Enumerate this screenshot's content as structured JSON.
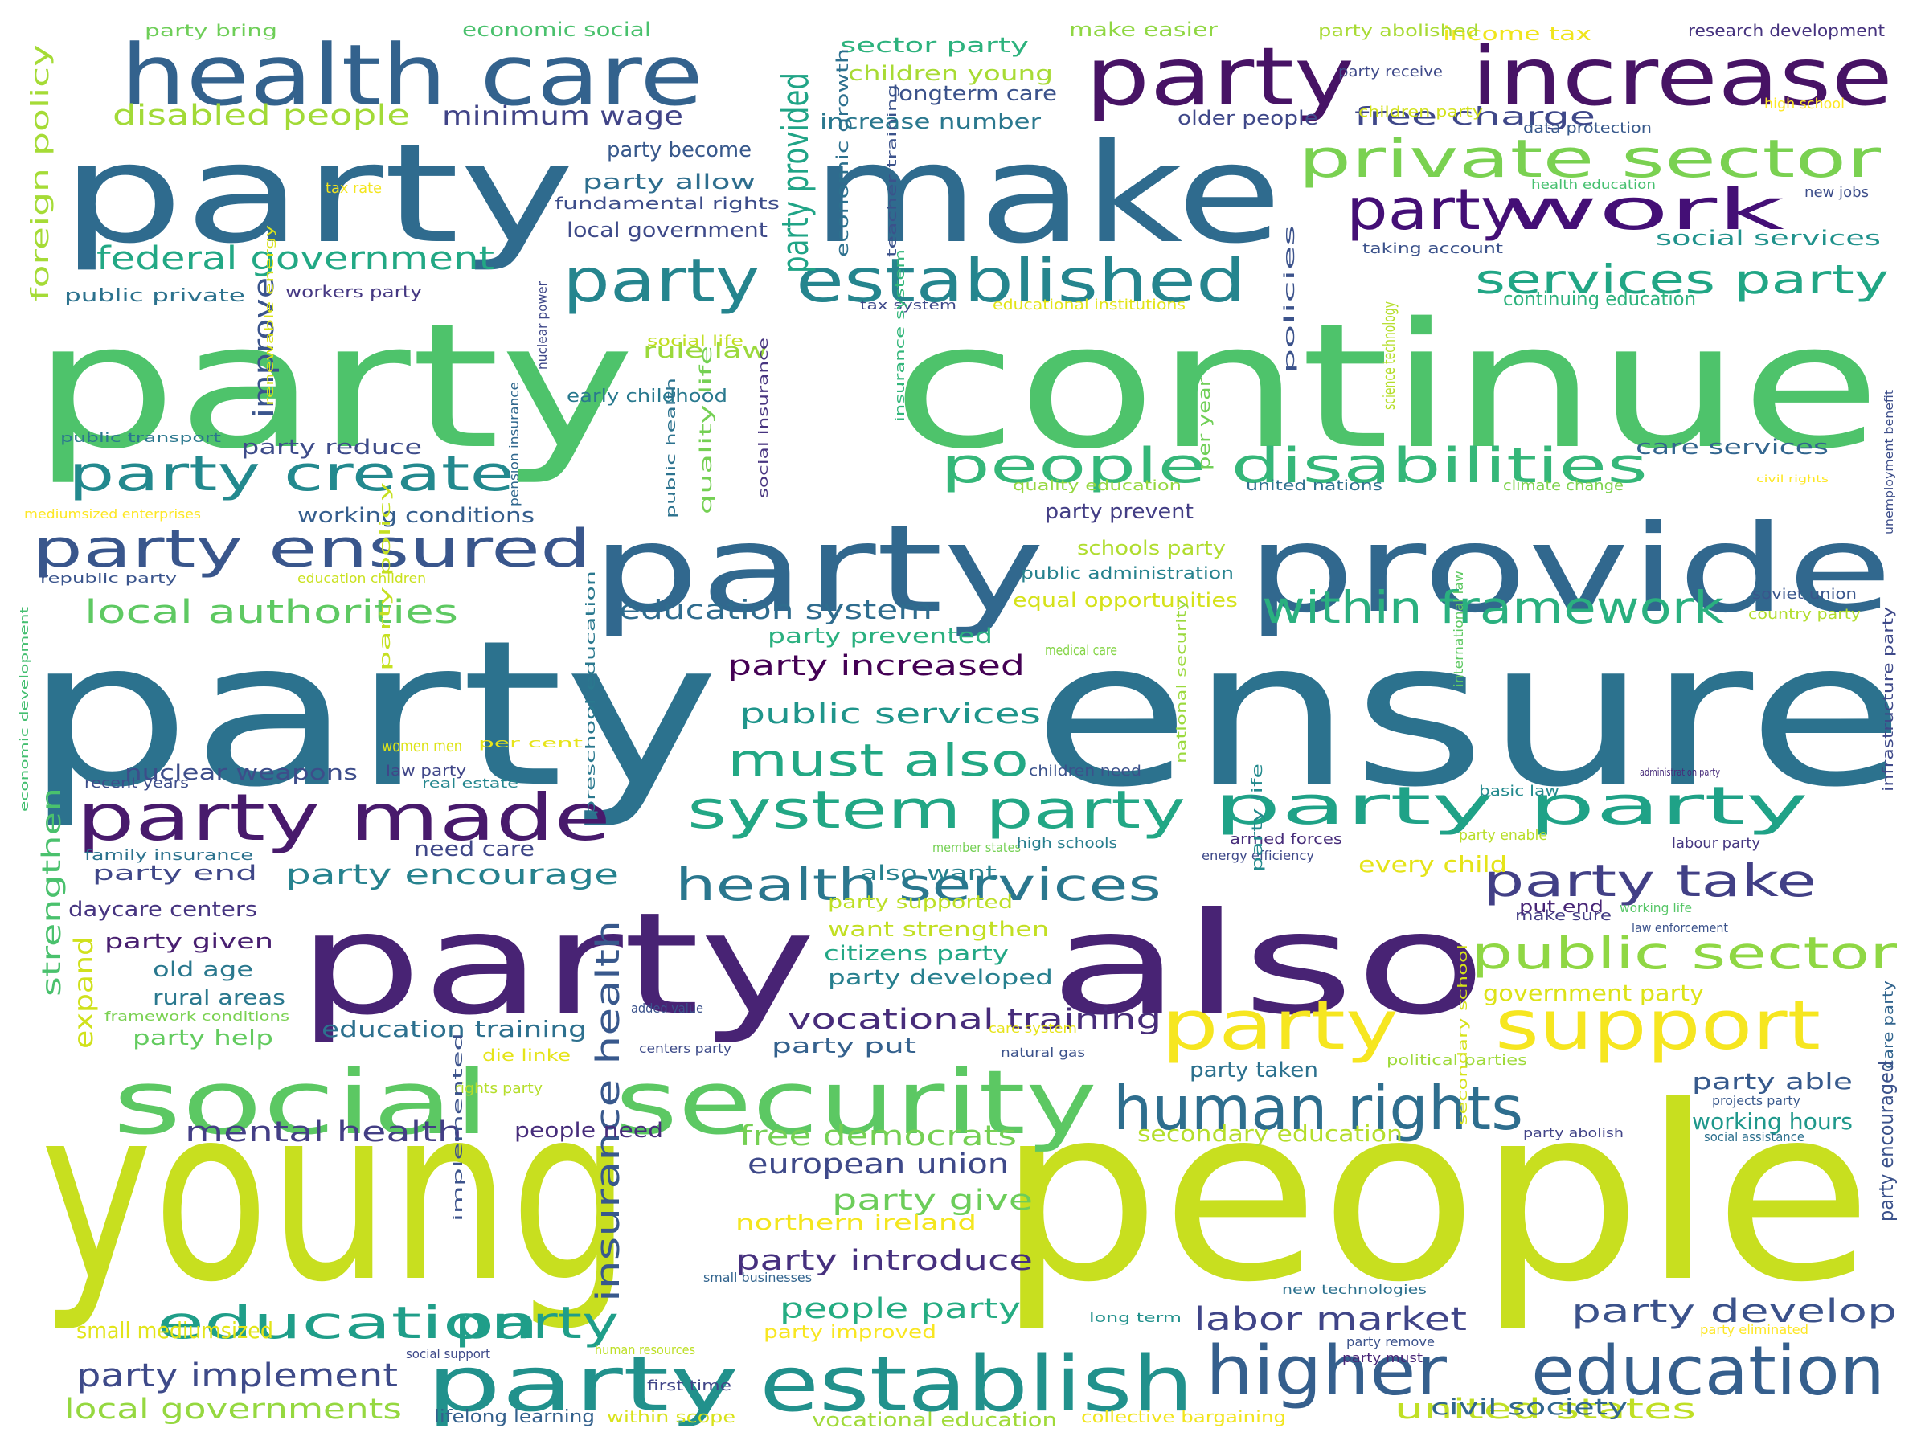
{
  "words": [
    {
      "text": "young people",
      "color": "#c8df1f"
    },
    {
      "text": "party ensure",
      "color": "#2c728e"
    },
    {
      "text": "party continue",
      "color": "#4ec36b"
    },
    {
      "text": "party make",
      "color": "#2f6b8e"
    },
    {
      "text": "party also",
      "color": "#482374"
    },
    {
      "text": "party provide",
      "color": "#31688e"
    },
    {
      "text": "health care",
      "color": "#33628d"
    },
    {
      "text": "party increase",
      "color": "#471365"
    },
    {
      "text": "social security",
      "color": "#5cc863"
    },
    {
      "text": "party established",
      "color": "#25858e"
    },
    {
      "text": "higher education",
      "color": "#355f8d"
    },
    {
      "text": "party establish",
      "color": "#21918c"
    },
    {
      "text": "party support",
      "color": "#f6e620"
    },
    {
      "text": "human rights",
      "color": "#2e6e8e"
    },
    {
      "text": "private sector",
      "color": "#7ad151"
    },
    {
      "text": "party work",
      "color": "#440f76"
    },
    {
      "text": "party made",
      "color": "#481a6c"
    },
    {
      "text": "system party",
      "color": "#22a785"
    },
    {
      "text": "people disabilities",
      "color": "#35b779"
    },
    {
      "text": "party create",
      "color": "#23898e"
    },
    {
      "text": "party ensured",
      "color": "#39568c"
    },
    {
      "text": "education party",
      "color": "#1f9e89"
    },
    {
      "text": "within framework",
      "color": "#2ab07f"
    },
    {
      "text": "services party",
      "color": "#21a685"
    },
    {
      "text": "health services",
      "color": "#2a778e"
    },
    {
      "text": "public sector",
      "color": "#8fd744"
    },
    {
      "text": "party take",
      "color": "#424086"
    },
    {
      "text": "must also",
      "color": "#22a884"
    },
    {
      "text": "party provided",
      "color": "#20a486"
    },
    {
      "text": "party party",
      "color": "#1fa287"
    },
    {
      "text": "labor market",
      "color": "#404588"
    },
    {
      "text": "party develop",
      "color": "#3b528b"
    },
    {
      "text": "party implement",
      "color": "#3e4a89"
    },
    {
      "text": "federal government",
      "color": "#22a884"
    },
    {
      "text": "vocational training",
      "color": "#472c7a"
    },
    {
      "text": "insurance health",
      "color": "#38588c"
    },
    {
      "text": "local authorities",
      "color": "#5ec962"
    },
    {
      "text": "local governments",
      "color": "#95d840"
    },
    {
      "text": "united states",
      "color": "#c0df25"
    },
    {
      "text": "mental health",
      "color": "#433e85"
    },
    {
      "text": "free democrats",
      "color": "#75d054"
    },
    {
      "text": "european union",
      "color": "#3e4989"
    },
    {
      "text": "people party",
      "color": "#25ac82"
    },
    {
      "text": "party introduce",
      "color": "#46307e"
    },
    {
      "text": "party increased",
      "color": "#440154"
    },
    {
      "text": "public services",
      "color": "#1f958b"
    },
    {
      "text": "education system",
      "color": "#2f6c8e"
    },
    {
      "text": "party give",
      "color": "#6ccd5a"
    },
    {
      "text": "disabled people",
      "color": "#a2da37"
    },
    {
      "text": "minimum wage",
      "color": "#414487"
    },
    {
      "text": "free charge",
      "color": "#3f4889"
    },
    {
      "text": "improve",
      "color": "#3a548c"
    },
    {
      "text": "strengthen",
      "color": "#4ac16d"
    },
    {
      "text": "expand",
      "color": "#d0e11c"
    },
    {
      "text": "party encourage",
      "color": "#26828e"
    },
    {
      "text": "foreign policy",
      "color": "#a5db36"
    },
    {
      "text": "education training",
      "color": "#2d708e"
    },
    {
      "text": "civil society",
      "color": "#31668e"
    },
    {
      "text": "secondary education",
      "color": "#b5de2b"
    },
    {
      "text": "party able",
      "color": "#375a8c"
    },
    {
      "text": "working hours",
      "color": "#1f988b"
    },
    {
      "text": "every child",
      "color": "#e5e419"
    },
    {
      "text": "government party",
      "color": "#dde318"
    },
    {
      "text": "small mediumsized",
      "color": "#e2e418"
    },
    {
      "text": "vocational education",
      "color": "#a0da39"
    },
    {
      "text": "lifelong learning",
      "color": "#34618d"
    },
    {
      "text": "within scope",
      "color": "#d8e219"
    },
    {
      "text": "collective bargaining",
      "color": "#f1e51d"
    },
    {
      "text": "party improved",
      "color": "#f8e621"
    },
    {
      "text": "northern ireland",
      "color": "#f4e61e"
    },
    {
      "text": "want strengthen",
      "color": "#c2df23"
    },
    {
      "text": "citizens party",
      "color": "#22a785"
    },
    {
      "text": "party developed",
      "color": "#277f8e"
    },
    {
      "text": "party supported",
      "color": "#bddf26"
    },
    {
      "text": "party put",
      "color": "#34618d"
    },
    {
      "text": "party taken",
      "color": "#2c718e"
    },
    {
      "text": "people need",
      "color": "#472d7b"
    },
    {
      "text": "nuclear weapons",
      "color": "#3d4d8a"
    },
    {
      "text": "party end",
      "color": "#3f4788"
    },
    {
      "text": "daycare centers",
      "color": "#463480"
    },
    {
      "text": "party given",
      "color": "#481f70"
    },
    {
      "text": "old age",
      "color": "#2a788e"
    },
    {
      "text": "rural areas",
      "color": "#2a788e"
    },
    {
      "text": "party help",
      "color": "#63cb5f"
    },
    {
      "text": "need care",
      "color": "#3f4788"
    },
    {
      "text": "also want",
      "color": "#26818e"
    },
    {
      "text": "party prevented",
      "color": "#2ab07f"
    },
    {
      "text": "equal opportunities",
      "color": "#d5e21a"
    },
    {
      "text": "party prevent",
      "color": "#433e85"
    },
    {
      "text": "schools party",
      "color": "#b0dd2f"
    },
    {
      "text": "working conditions",
      "color": "#355e8d"
    },
    {
      "text": "party reduce",
      "color": "#3e4c8a"
    },
    {
      "text": "rule law",
      "color": "#9bd93c"
    },
    {
      "text": "early childhood",
      "color": "#29798e"
    },
    {
      "text": "care services",
      "color": "#32658e"
    },
    {
      "text": "continuing education",
      "color": "#2db27d"
    },
    {
      "text": "social services",
      "color": "#20928c"
    },
    {
      "text": "party allow",
      "color": "#2e6e8e"
    },
    {
      "text": "party become",
      "color": "#38598c"
    },
    {
      "text": "local government",
      "color": "#3e4a89"
    },
    {
      "text": "fundamental rights",
      "color": "#3d4d8a"
    },
    {
      "text": "sector party",
      "color": "#2db27d"
    },
    {
      "text": "children young",
      "color": "#a8db34"
    },
    {
      "text": "longterm care",
      "color": "#3b528b"
    },
    {
      "text": "increase number",
      "color": "#2a788e"
    },
    {
      "text": "older people",
      "color": "#3f4889"
    },
    {
      "text": "make easier",
      "color": "#90d743"
    },
    {
      "text": "income tax",
      "color": "#f0e51c"
    },
    {
      "text": "economic social",
      "color": "#4ac16d"
    },
    {
      "text": "party bring",
      "color": "#6ece58"
    },
    {
      "text": "party abolished",
      "color": "#a8db34"
    },
    {
      "text": "research development",
      "color": "#46337f"
    },
    {
      "text": "data protection",
      "color": "#38598c"
    },
    {
      "text": "party receive",
      "color": "#3e4989"
    },
    {
      "text": "children party",
      "color": "#d2e21b"
    },
    {
      "text": "high school",
      "color": "#fde725"
    },
    {
      "text": "health education",
      "color": "#46c06f"
    },
    {
      "text": "new jobs",
      "color": "#3d4e8a"
    },
    {
      "text": "taking account",
      "color": "#3b528b"
    },
    {
      "text": "public private",
      "color": "#2c728e"
    },
    {
      "text": "workers party",
      "color": "#453882"
    },
    {
      "text": "tax rate",
      "color": "#f3e51e"
    },
    {
      "text": "tax system",
      "color": "#3e4989"
    },
    {
      "text": "educational institutions",
      "color": "#e2e418"
    },
    {
      "text": "social life",
      "color": "#c2df23"
    },
    {
      "text": "public transport",
      "color": "#2a778e"
    },
    {
      "text": "mediumsized enterprises",
      "color": "#fde725"
    },
    {
      "text": "republic party",
      "color": "#3a548c"
    },
    {
      "text": "education children",
      "color": "#cae11f"
    },
    {
      "text": "united nations",
      "color": "#2d708e"
    },
    {
      "text": "climate change",
      "color": "#7fd34e"
    },
    {
      "text": "quality education",
      "color": "#95d840"
    },
    {
      "text": "public administration",
      "color": "#26828e"
    },
    {
      "text": "soviet union",
      "color": "#39568c"
    },
    {
      "text": "country party",
      "color": "#b2dd2d"
    },
    {
      "text": "medical care",
      "color": "#86d549"
    },
    {
      "text": "per cent",
      "color": "#e7e419"
    },
    {
      "text": "women men",
      "color": "#dde318"
    },
    {
      "text": "law party",
      "color": "#404688"
    },
    {
      "text": "real estate",
      "color": "#24868e"
    },
    {
      "text": "children need",
      "color": "#3b528b"
    },
    {
      "text": "basic law",
      "color": "#238a8d"
    },
    {
      "text": "armed forces",
      "color": "#472c7a"
    },
    {
      "text": "party enable",
      "color": "#b8de29"
    },
    {
      "text": "labour party",
      "color": "#453781"
    },
    {
      "text": "member states",
      "color": "#75d054"
    },
    {
      "text": "high schools",
      "color": "#277e8e"
    },
    {
      "text": "energy efficiency",
      "color": "#3e4989"
    },
    {
      "text": "make sure",
      "color": "#433d84"
    },
    {
      "text": "working life",
      "color": "#56c667"
    },
    {
      "text": "law enforcement",
      "color": "#3b528b"
    },
    {
      "text": "put end",
      "color": "#482576"
    },
    {
      "text": "recent years",
      "color": "#3d4d8a"
    },
    {
      "text": "family insurance",
      "color": "#2c728e"
    },
    {
      "text": "framework conditions",
      "color": "#7ad151"
    },
    {
      "text": "added value",
      "color": "#3b528b"
    },
    {
      "text": "centers party",
      "color": "#3e4c8a"
    },
    {
      "text": "care system",
      "color": "#e7e419"
    },
    {
      "text": "natural gas",
      "color": "#3b528b"
    },
    {
      "text": "political parties",
      "color": "#9fda3a"
    },
    {
      "text": "projects party",
      "color": "#38588c"
    },
    {
      "text": "party abolish",
      "color": "#404387"
    },
    {
      "text": "social assistance",
      "color": "#2d708e"
    },
    {
      "text": "die linke",
      "color": "#e5e419"
    },
    {
      "text": "rights party",
      "color": "#b5de2b"
    },
    {
      "text": "small businesses",
      "color": "#32648e"
    },
    {
      "text": "new technologies",
      "color": "#2c718e"
    },
    {
      "text": "long term",
      "color": "#21918c"
    },
    {
      "text": "party remove",
      "color": "#3b528b"
    },
    {
      "text": "party must",
      "color": "#482576"
    },
    {
      "text": "party eliminated",
      "color": "#fde725"
    },
    {
      "text": "social support",
      "color": "#3e4a89"
    },
    {
      "text": "human resources",
      "color": "#bddf26"
    },
    {
      "text": "first time",
      "color": "#404588"
    },
    {
      "text": "economic growth",
      "color": "#2d708e"
    },
    {
      "text": "teacher training",
      "color": "#3b528b"
    },
    {
      "text": "insurance system",
      "color": "#32b67a"
    },
    {
      "text": "quality life",
      "color": "#75d054"
    },
    {
      "text": "social insurance",
      "color": "#46337f"
    },
    {
      "text": "public health",
      "color": "#2c728e"
    },
    {
      "text": "pension insurance",
      "color": "#31688e"
    },
    {
      "text": "nuclear power",
      "color": "#3f4889"
    },
    {
      "text": "renewable energy",
      "color": "#dae319"
    },
    {
      "text": "per year",
      "color": "#70cf57"
    },
    {
      "text": "policies",
      "color": "#3b528b"
    },
    {
      "text": "science technology",
      "color": "#b5de2b"
    },
    {
      "text": "party policy",
      "color": "#c5e021"
    },
    {
      "text": "national security",
      "color": "#9bd93c"
    },
    {
      "text": "party life",
      "color": "#238a8d"
    },
    {
      "text": "international law",
      "color": "#5ec962"
    },
    {
      "text": "preschool education",
      "color": "#2a788e"
    },
    {
      "text": "economic development",
      "color": "#44bf70"
    },
    {
      "text": "infrastructure party",
      "color": "#3e4989"
    },
    {
      "text": "unemployment benefit",
      "color": "#3d4e8a"
    },
    {
      "text": "care party",
      "color": "#32658e"
    },
    {
      "text": "party encouraged",
      "color": "#3b528b"
    },
    {
      "text": "secondary school",
      "color": "#d5e21a"
    },
    {
      "text": "implemented",
      "color": "#3b528b"
    },
    {
      "text": "administration party",
      "color": "#472c7a"
    },
    {
      "text": "civil rights",
      "color": "#fde725"
    }
  ]
}
